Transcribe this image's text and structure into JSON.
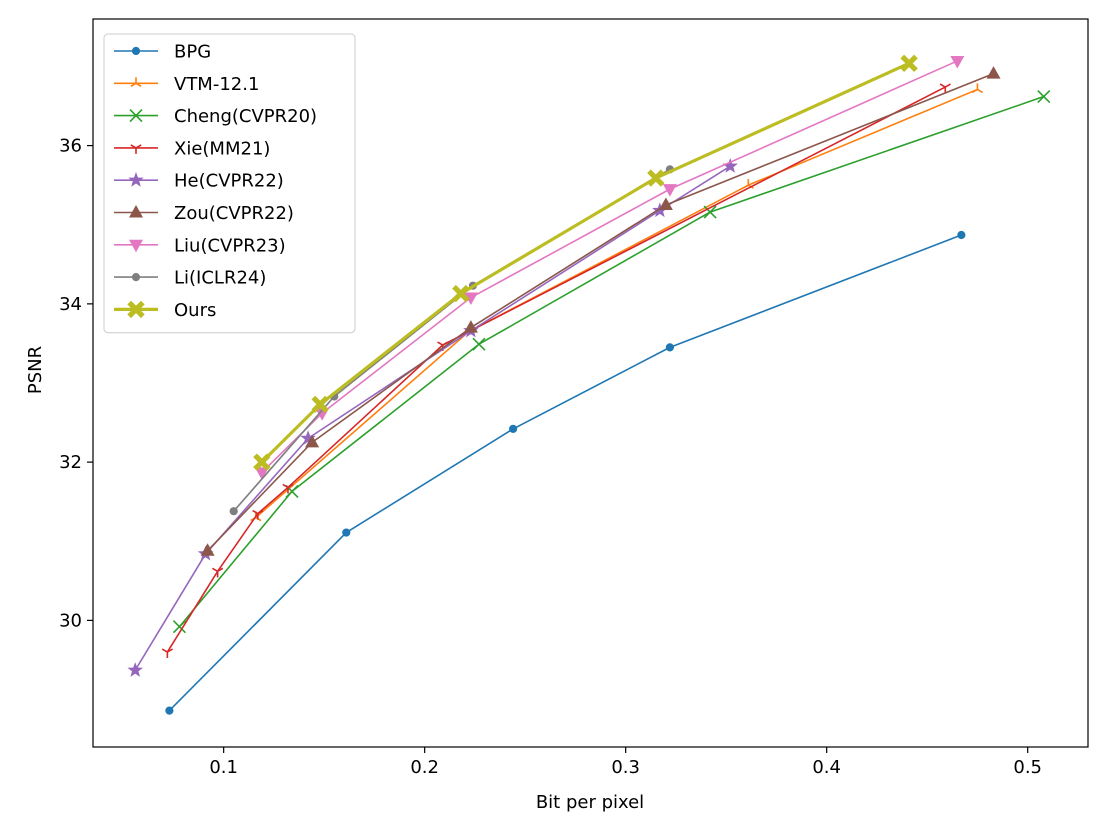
{
  "chart_data": {
    "type": "line",
    "title": "",
    "xlabel": "Bit per pixel",
    "ylabel": "PSNR",
    "xlim": [
      0.035,
      0.53
    ],
    "ylim": [
      28.4,
      37.6
    ],
    "xticks": [
      0.1,
      0.2,
      0.3,
      0.4,
      0.5
    ],
    "xtick_labels": [
      "0.1",
      "0.2",
      "0.3",
      "0.4",
      "0.5"
    ],
    "yticks": [
      30,
      32,
      34,
      36
    ],
    "ytick_labels": [
      "30",
      "32",
      "34",
      "36"
    ],
    "grid": false,
    "legend_position": "top-left",
    "series": [
      {
        "name": "BPG",
        "color": "#1f77b4",
        "marker": "circle",
        "x": [
          0.073,
          0.161,
          0.244,
          0.322,
          0.467
        ],
        "y": [
          28.86,
          31.11,
          32.42,
          33.45,
          34.87
        ]
      },
      {
        "name": "VTM-12.1",
        "color": "#ff7f0e",
        "marker": "tri_up",
        "x": [
          0.116,
          0.222,
          0.361,
          0.475
        ],
        "y": [
          31.3,
          33.65,
          35.5,
          36.71
        ]
      },
      {
        "name": "Cheng(CVPR20)",
        "color": "#2ca02c",
        "marker": "x",
        "x": [
          0.078,
          0.134,
          0.227,
          0.342,
          0.508
        ],
        "y": [
          29.92,
          31.63,
          33.49,
          35.16,
          36.62
        ]
      },
      {
        "name": "Xie(MM21)",
        "color": "#d62728",
        "marker": "tri_down",
        "x": [
          0.072,
          0.097,
          0.117,
          0.132,
          0.209,
          0.459
        ],
        "y": [
          29.6,
          30.62,
          31.35,
          31.68,
          33.48,
          36.74
        ]
      },
      {
        "name": "He(CVPR22)",
        "color": "#9467bd",
        "marker": "star",
        "x": [
          0.056,
          0.091,
          0.142,
          0.223,
          0.317,
          0.352
        ],
        "y": [
          29.37,
          30.84,
          32.3,
          33.66,
          35.18,
          35.74
        ]
      },
      {
        "name": "Zou(CVPR22)",
        "color": "#8c564b",
        "marker": "triangle_up",
        "x": [
          0.092,
          0.144,
          0.223,
          0.32,
          0.483
        ],
        "y": [
          30.88,
          32.25,
          33.7,
          35.25,
          36.91
        ]
      },
      {
        "name": "Liu(CVPR23)",
        "color": "#e377c2",
        "marker": "triangle_down",
        "x": [
          0.119,
          0.149,
          0.223,
          0.322,
          0.465
        ],
        "y": [
          31.87,
          32.62,
          34.08,
          35.45,
          37.07
        ]
      },
      {
        "name": "Li(ICLR24)",
        "color": "#7f7f7f",
        "marker": "circle",
        "x": [
          0.105,
          0.155,
          0.224,
          0.322
        ],
        "y": [
          31.38,
          32.83,
          34.23,
          35.7
        ]
      },
      {
        "name": "Ours",
        "color": "#bcbd22",
        "marker": "x_filled",
        "x": [
          0.119,
          0.148,
          0.218,
          0.315,
          0.441
        ],
        "y": [
          32.0,
          32.73,
          34.13,
          35.59,
          37.04
        ]
      }
    ]
  }
}
